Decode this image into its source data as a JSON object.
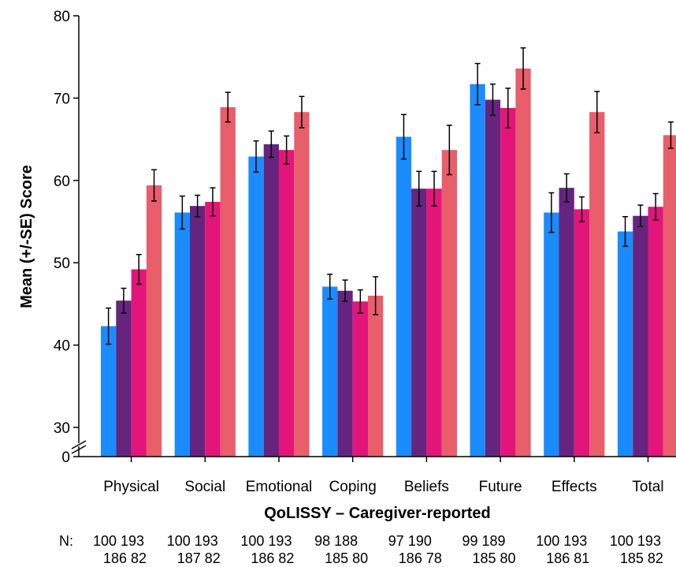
{
  "chart_data": {
    "type": "bar",
    "xlabel": "QoLISSY – Caregiver-reported",
    "ylabel": "Mean (+/-SE) Score",
    "ylim": [
      30,
      80
    ],
    "y_axis_break": true,
    "y_ticks": [
      "80",
      "70",
      "60",
      "50",
      "40",
      "30",
      "0"
    ],
    "categories": [
      "Physical",
      "Social",
      "Emotional",
      "Coping",
      "Beliefs",
      "Future",
      "Effects",
      "Total"
    ],
    "series": [
      {
        "color": "#1a8cff",
        "values": [
          42.3,
          56.1,
          62.9,
          47.1,
          65.3,
          71.7,
          56.1,
          53.8
        ],
        "se": [
          2.2,
          2.0,
          1.9,
          1.5,
          2.7,
          2.5,
          2.4,
          1.8
        ]
      },
      {
        "color": "#66247f",
        "values": [
          45.4,
          56.9,
          64.4,
          46.6,
          59.0,
          69.8,
          59.1,
          55.7
        ],
        "se": [
          1.5,
          1.3,
          1.6,
          1.3,
          2.1,
          1.9,
          1.7,
          1.3
        ]
      },
      {
        "color": "#e3157a",
        "values": [
          49.2,
          57.4,
          63.7,
          45.3,
          59.0,
          68.8,
          56.5,
          56.8
        ],
        "se": [
          1.8,
          1.7,
          1.7,
          1.4,
          2.1,
          2.4,
          1.5,
          1.6
        ]
      },
      {
        "color": "#e85e6a",
        "values": [
          59.4,
          68.9,
          68.3,
          46.0,
          63.7,
          73.6,
          68.3,
          65.5
        ],
        "se": [
          1.9,
          1.8,
          1.9,
          2.3,
          3.0,
          2.5,
          2.5,
          1.6
        ]
      }
    ],
    "n_label": "N:",
    "n_counts": [
      {
        "top": "100 193",
        "bottom": "186 82"
      },
      {
        "top": "100 193",
        "bottom": "187 82"
      },
      {
        "top": "100 193",
        "bottom": "186 82"
      },
      {
        "top": "98 188",
        "bottom": "185 80"
      },
      {
        "top": "97 190",
        "bottom": "186 78"
      },
      {
        "top": "99 189",
        "bottom": "185 80"
      },
      {
        "top": "100 193",
        "bottom": "186 81"
      },
      {
        "top": "100 193",
        "bottom": "185 82"
      }
    ]
  }
}
